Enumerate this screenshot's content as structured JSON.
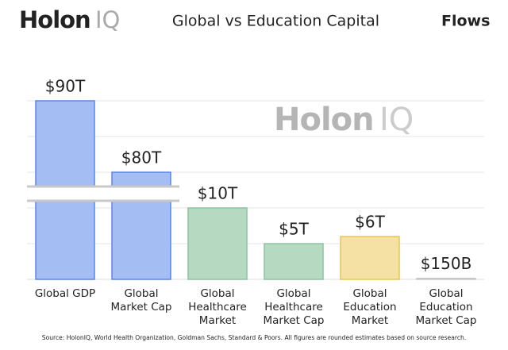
{
  "logo": {
    "brand": "Holon",
    "suffix": "IQ"
  },
  "chart_data": {
    "type": "bar",
    "title": "Global vs Education Capital",
    "title_bold": "Flows",
    "watermark": {
      "brand": "Holon",
      "suffix": "IQ"
    },
    "categories": [
      "Global GDP",
      "Global\nMarket Cap",
      "Global\nHealthcare\nMarket",
      "Global\nHealthcare\nMarket Cap",
      "Global\nEducation\nMarket",
      "Global\nEducation\nMarket Cap"
    ],
    "values": [
      90,
      80,
      10,
      5,
      6,
      0.15
    ],
    "value_labels": [
      "$90T",
      "$80T",
      "$10T",
      "$5T",
      "$6T",
      "$150B"
    ],
    "colors": [
      "#a4bdf3",
      "#a4bdf3",
      "#b6d9c2",
      "#b6d9c2",
      "#f4e1a3",
      "#e4e4e4"
    ],
    "stroke_colors": [
      "#5b87e8",
      "#5b87e8",
      "#8cc49e",
      "#8cc49e",
      "#e5c55a",
      "#c8c8c8"
    ],
    "ylim": [
      0,
      95
    ],
    "y_break": [
      11,
      78
    ],
    "yticks": [
      5,
      10,
      80,
      85,
      90
    ],
    "grid": true,
    "source": "Source: HolonIQ, World Health Organization, Goldman Sachs, Standard & Poors. All figures are rounded estimates based on source research."
  }
}
